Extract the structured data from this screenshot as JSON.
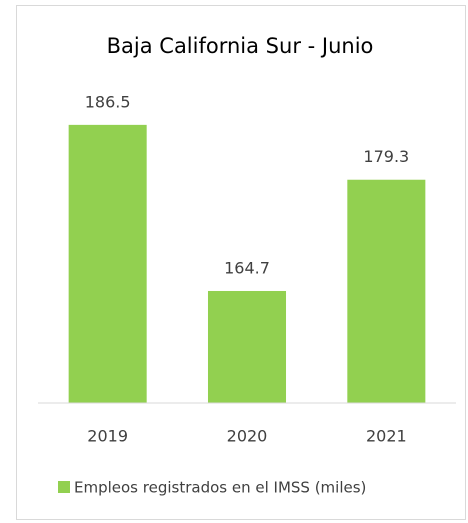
{
  "chart_data": {
    "type": "bar",
    "title": "Baja California Sur - Junio",
    "categories": [
      "2019",
      "2020",
      "2021"
    ],
    "series": [
      {
        "name": "Empleos registrados en el IMSS (miles)",
        "color": "#92d050",
        "values": [
          186.5,
          164.7,
          179.3
        ]
      }
    ],
    "ylim": [
      150,
      200
    ],
    "legend": "bottom"
  }
}
